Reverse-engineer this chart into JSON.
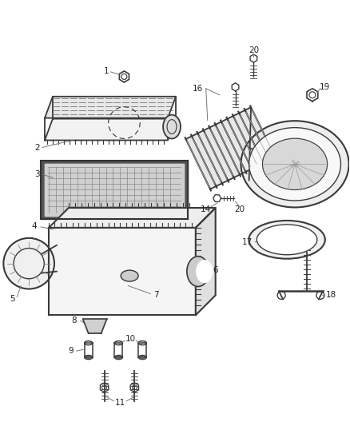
{
  "bg_color": "#ffffff",
  "fig_width": 4.38,
  "fig_height": 5.33,
  "dpi": 100,
  "line_color": "#3a3a3a",
  "text_color": "#222222",
  "label_fontsize": 7.5
}
